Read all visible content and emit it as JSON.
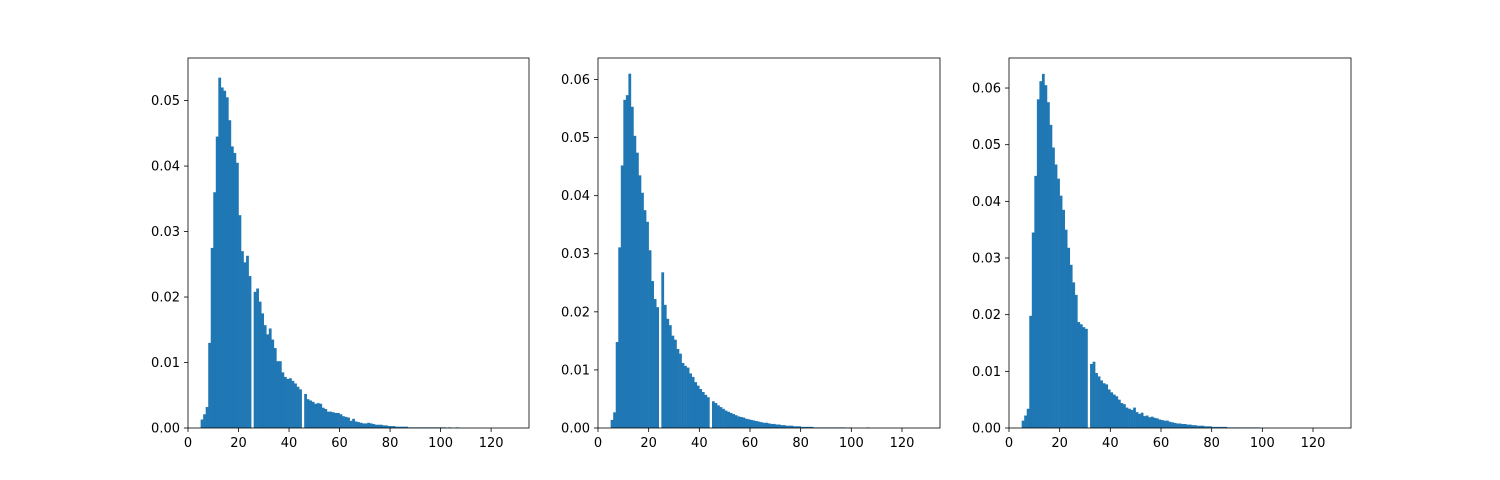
{
  "chart_data": [
    {
      "type": "bar",
      "title": "",
      "xlabel": "",
      "ylabel": "",
      "xlim": [
        0,
        135
      ],
      "ylim": [
        0,
        0.0565
      ],
      "xticks": [
        "0",
        "20",
        "40",
        "60",
        "80",
        "100",
        "120"
      ],
      "yticks": [
        "0.00",
        "0.01",
        "0.02",
        "0.03",
        "0.04",
        "0.05"
      ],
      "grid": false,
      "bins": {
        "x": [
          5,
          6,
          7,
          8,
          9,
          10,
          11,
          12,
          13,
          14,
          15,
          16,
          17,
          18,
          19,
          20,
          21,
          22,
          23,
          24,
          25,
          26,
          27,
          28,
          29,
          30,
          31,
          32,
          33,
          34,
          35,
          36,
          37,
          38,
          39,
          40,
          41,
          42,
          43,
          44,
          45,
          46,
          47,
          48,
          49,
          50,
          51,
          52,
          53,
          54,
          55,
          56,
          57,
          58,
          59,
          60,
          61,
          62,
          63,
          64,
          65,
          66,
          67,
          68,
          69,
          70,
          71,
          72,
          73,
          74,
          75,
          76,
          77,
          78,
          79,
          80,
          81,
          82,
          83,
          84,
          85,
          86,
          87,
          88,
          89,
          90,
          91,
          92,
          93,
          94,
          95,
          96,
          97,
          98,
          99,
          100,
          101,
          102,
          103,
          104,
          105,
          106,
          107,
          108,
          109,
          110
        ],
        "values": [
          0.0013,
          0.0021,
          0.0032,
          0.013,
          0.0275,
          0.036,
          0.0445,
          0.0535,
          0.052,
          0.0515,
          0.0505,
          0.047,
          0.043,
          0.042,
          0.0405,
          0.0325,
          0.027,
          0.0253,
          0.0263,
          0.0232,
          0.0,
          0.0208,
          0.0213,
          0.0193,
          0.0175,
          0.0157,
          0.0143,
          0.0152,
          0.0135,
          0.0122,
          0.0102,
          0.0102,
          0.0085,
          0.0078,
          0.0075,
          0.0076,
          0.0072,
          0.0068,
          0.0063,
          0.0059,
          0.0,
          0.0052,
          0.0044,
          0.0042,
          0.004,
          0.0037,
          0.0038,
          0.0037,
          0.0031,
          0.0029,
          0.0025,
          0.0025,
          0.0024,
          0.0023,
          0.0023,
          0.0021,
          0.0018,
          0.0017,
          0.0016,
          0.0011,
          0.0014,
          0.001,
          0.0009,
          0.0008,
          0.0007,
          0.0007,
          0.0008,
          0.0007,
          0.0006,
          0.0005,
          0.0005,
          0.0005,
          0.0004,
          0.0004,
          0.0003,
          0.0003,
          0.0003,
          0.0002,
          0.0002,
          0.0002,
          0.0002,
          0.0002,
          0.0001,
          0.0001,
          0.0001,
          0.0001,
          0.0001,
          0.0001,
          0.0001,
          0.0001,
          0.0001,
          0.0001,
          0.0001,
          0.0001,
          0.0001,
          0.0001,
          0.0001,
          0.0,
          0.0001,
          0.0,
          0.0,
          0.0001,
          0.0,
          0.0,
          0.0,
          0.0
        ]
      }
    },
    {
      "type": "bar",
      "title": "",
      "xlabel": "",
      "ylabel": "",
      "xlim": [
        0,
        135
      ],
      "ylim": [
        0,
        0.0637
      ],
      "xticks": [
        "0",
        "20",
        "40",
        "60",
        "80",
        "100",
        "120"
      ],
      "yticks": [
        "0.00",
        "0.01",
        "0.02",
        "0.03",
        "0.04",
        "0.05",
        "0.06"
      ],
      "grid": false,
      "bins": {
        "x": [
          5,
          6,
          7,
          8,
          9,
          10,
          11,
          12,
          13,
          14,
          15,
          16,
          17,
          18,
          19,
          20,
          21,
          22,
          23,
          24,
          25,
          26,
          27,
          28,
          29,
          30,
          31,
          32,
          33,
          34,
          35,
          36,
          37,
          38,
          39,
          40,
          41,
          42,
          43,
          44,
          45,
          46,
          47,
          48,
          49,
          50,
          51,
          52,
          53,
          54,
          55,
          56,
          57,
          58,
          59,
          60,
          61,
          62,
          63,
          64,
          65,
          66,
          67,
          68,
          69,
          70,
          71,
          72,
          73,
          74,
          75,
          76,
          77,
          78,
          79,
          80,
          81,
          82,
          83,
          84,
          85,
          86,
          87,
          88,
          89,
          90,
          91,
          92,
          93,
          94,
          95,
          96,
          97,
          98,
          99,
          100,
          101,
          102,
          103,
          104,
          105,
          106,
          107,
          108,
          109,
          110
        ],
        "values": [
          0.0014,
          0.0027,
          0.0148,
          0.0311,
          0.0452,
          0.0565,
          0.0573,
          0.061,
          0.0553,
          0.0503,
          0.0474,
          0.0435,
          0.0405,
          0.0375,
          0.0355,
          0.0306,
          0.0253,
          0.0222,
          0.0208,
          0.0,
          0.0268,
          0.0212,
          0.0188,
          0.0177,
          0.0159,
          0.0152,
          0.0136,
          0.0128,
          0.0112,
          0.0107,
          0.0104,
          0.0094,
          0.0088,
          0.0079,
          0.0073,
          0.0067,
          0.0062,
          0.0057,
          0.0053,
          0.0,
          0.0046,
          0.0043,
          0.0039,
          0.0036,
          0.0033,
          0.003,
          0.0028,
          0.0026,
          0.0024,
          0.0022,
          0.002,
          0.0019,
          0.0018,
          0.0016,
          0.0015,
          0.0014,
          0.0013,
          0.0012,
          0.0011,
          0.001,
          0.0009,
          0.0009,
          0.0008,
          0.0007,
          0.0007,
          0.0006,
          0.0006,
          0.0005,
          0.0005,
          0.0004,
          0.0004,
          0.0004,
          0.0003,
          0.0003,
          0.0003,
          0.0002,
          0.0002,
          0.0002,
          0.0002,
          0.0002,
          0.0001,
          0.0001,
          0.0001,
          0.0001,
          0.0001,
          0.0001,
          0.0001,
          0.0001,
          0.0001,
          0.0001,
          0.0001,
          0.0001,
          0.0001,
          0.0,
          0.0001,
          0.0,
          0.0,
          0.0,
          0.0,
          0.0,
          0.0,
          0.0001,
          0.0,
          0.0,
          0.0,
          0.0
        ]
      }
    },
    {
      "type": "bar",
      "title": "",
      "xlabel": "",
      "ylabel": "",
      "xlim": [
        0,
        135
      ],
      "ylim": [
        0,
        0.0653
      ],
      "xticks": [
        "0",
        "20",
        "40",
        "60",
        "80",
        "100",
        "120"
      ],
      "yticks": [
        "0.00",
        "0.01",
        "0.02",
        "0.03",
        "0.04",
        "0.05",
        "0.06"
      ],
      "grid": false,
      "bins": {
        "x": [
          5,
          6,
          7,
          8,
          9,
          10,
          11,
          12,
          13,
          14,
          15,
          16,
          17,
          18,
          19,
          20,
          21,
          22,
          23,
          24,
          25,
          26,
          27,
          28,
          29,
          30,
          31,
          32,
          33,
          34,
          35,
          36,
          37,
          38,
          39,
          40,
          41,
          42,
          43,
          44,
          45,
          46,
          47,
          48,
          49,
          50,
          51,
          52,
          53,
          54,
          55,
          56,
          57,
          58,
          59,
          60,
          61,
          62,
          63,
          64,
          65,
          66,
          67,
          68,
          69,
          70,
          71,
          72,
          73,
          74,
          75,
          76,
          77,
          78,
          79,
          80,
          81,
          82,
          83,
          84,
          85,
          86,
          87,
          88,
          89,
          90,
          91,
          92,
          93,
          94,
          95,
          96,
          97,
          98,
          99,
          100,
          101,
          102,
          103,
          104,
          105,
          106,
          107,
          108,
          109,
          110
        ],
        "values": [
          0.0013,
          0.0022,
          0.0034,
          0.0198,
          0.0345,
          0.0445,
          0.058,
          0.0612,
          0.0625,
          0.0605,
          0.0575,
          0.0535,
          0.0495,
          0.0465,
          0.044,
          0.041,
          0.0385,
          0.035,
          0.0318,
          0.0288,
          0.0257,
          0.0235,
          0.0187,
          0.0183,
          0.0178,
          0.0175,
          0.0,
          0.0113,
          0.0117,
          0.0097,
          0.0091,
          0.0084,
          0.0079,
          0.0077,
          0.0068,
          0.0063,
          0.0059,
          0.0056,
          0.005,
          0.0044,
          0.0042,
          0.0036,
          0.0034,
          0.0032,
          0.0036,
          0.0028,
          0.0025,
          0.0027,
          0.0021,
          0.0022,
          0.0019,
          0.002,
          0.0018,
          0.0017,
          0.0015,
          0.0014,
          0.0013,
          0.0013,
          0.0011,
          0.001,
          0.0009,
          0.0008,
          0.0008,
          0.0007,
          0.0007,
          0.0006,
          0.0006,
          0.0005,
          0.0005,
          0.0004,
          0.0004,
          0.0004,
          0.0003,
          0.0003,
          0.0003,
          0.0002,
          0.0002,
          0.0002,
          0.0002,
          0.0002,
          0.0002,
          0.0001,
          0.0001,
          0.0001,
          0.0001,
          0.0001,
          0.0001,
          0.0001,
          0.0001,
          0.0001,
          0.0001,
          0.0001,
          0.0001,
          0.0001,
          0.0,
          0.0,
          0.0,
          0.0,
          0.0,
          0.0,
          0.0,
          0.0,
          0.0,
          0.0,
          0.0,
          0.0
        ]
      }
    }
  ],
  "colors": {
    "bar": "#1f77b4",
    "axis": "#000000"
  }
}
